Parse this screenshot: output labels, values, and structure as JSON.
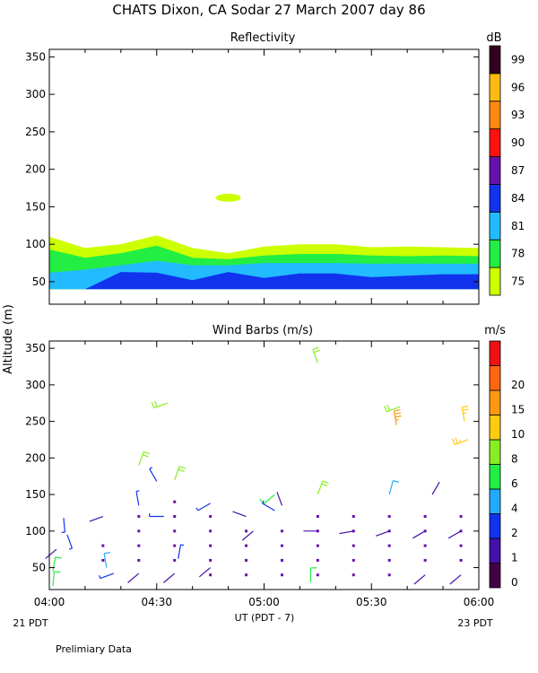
{
  "figure": {
    "title": "CHATS Dixon, CA   Sodar  27 March 2007   day  86",
    "y_axis_label": "Altitude  (m)",
    "x_axis_label": "UT  (PDT - 7)",
    "left_date": "21 PDT",
    "right_date": "23 PDT",
    "footnote": "Prelimiary Data"
  },
  "chart_data": [
    {
      "type": "area",
      "title": "Reflectivity",
      "xlabel": "UT  (PDT - 7)",
      "ylabel": "Altitude  (m)",
      "x_ticks": [
        "04:00",
        "04:30",
        "05:00",
        "05:30",
        "06:00"
      ],
      "x_tick_minutes": [
        0,
        30,
        60,
        90,
        120
      ],
      "xlim_minutes": [
        0,
        120
      ],
      "ylim": [
        20,
        360
      ],
      "y_ticks": [
        50,
        100,
        150,
        200,
        250,
        300,
        350
      ],
      "colorbar": {
        "unit": "dB",
        "levels": [
          75,
          78,
          81,
          84,
          87,
          90,
          93,
          96,
          99
        ],
        "colors": [
          "#ccff00",
          "#22ee44",
          "#22bbff",
          "#1133ee",
          "#6611aa",
          "#ff1111",
          "#ff8811",
          "#ffbb11",
          "#330022"
        ]
      },
      "x_minutes": [
        0,
        10,
        20,
        30,
        40,
        50,
        60,
        70,
        80,
        90,
        100,
        110,
        120
      ],
      "series": [
        {
          "level": 75,
          "top": [
            110,
            95,
            100,
            112,
            95,
            88,
            97,
            100,
            100,
            96,
            97,
            96,
            95
          ]
        },
        {
          "level": 78,
          "top": [
            93,
            82,
            88,
            98,
            82,
            80,
            85,
            87,
            87,
            85,
            84,
            85,
            84
          ]
        },
        {
          "level": 81,
          "top": [
            62,
            66,
            72,
            78,
            72,
            72,
            75,
            75,
            75,
            74,
            74,
            74,
            74
          ]
        },
        {
          "level": 84,
          "top": [
            40,
            40,
            63,
            62,
            52,
            63,
            55,
            61,
            61,
            56,
            58,
            60,
            60
          ]
        }
      ],
      "blob": {
        "level": 75,
        "center_minute": 50,
        "altitude": 162
      }
    },
    {
      "type": "scatter",
      "title": "Wind Barbs (m/s)",
      "xlabel": "UT  (PDT - 7)",
      "ylabel": "Altitude  (m)",
      "x_ticks": [
        "04:00",
        "04:30",
        "05:00",
        "05:30",
        "06:00"
      ],
      "x_tick_minutes": [
        0,
        30,
        60,
        90,
        120
      ],
      "xlim_minutes": [
        0,
        120
      ],
      "ylim": [
        20,
        360
      ],
      "y_ticks": [
        50,
        100,
        150,
        200,
        250,
        300,
        350
      ],
      "colorbar": {
        "unit": "m/s",
        "labels": [
          "0",
          "1",
          "2",
          "4",
          "6",
          "8",
          "10",
          "15",
          "20"
        ],
        "colors": [
          "#440044",
          "#4411aa",
          "#1133ee",
          "#22aaff",
          "#22ee44",
          "#88ee22",
          "#ffcc11",
          "#ff9911",
          "#ff6611",
          "#ee1111"
        ]
      },
      "missing_points": [
        [
          15,
          80
        ],
        [
          25,
          80
        ],
        [
          35,
          80
        ],
        [
          45,
          80
        ],
        [
          55,
          80
        ],
        [
          65,
          80
        ],
        [
          75,
          80
        ],
        [
          85,
          80
        ],
        [
          95,
          80
        ],
        [
          105,
          80
        ],
        [
          115,
          80
        ],
        [
          15,
          60
        ],
        [
          25,
          60
        ],
        [
          35,
          60
        ],
        [
          45,
          60
        ],
        [
          55,
          60
        ],
        [
          65,
          60
        ],
        [
          75,
          60
        ],
        [
          85,
          60
        ],
        [
          95,
          60
        ],
        [
          105,
          60
        ],
        [
          115,
          60
        ],
        [
          25,
          100
        ],
        [
          35,
          100
        ],
        [
          45,
          100
        ],
        [
          55,
          100
        ],
        [
          65,
          100
        ],
        [
          75,
          100
        ],
        [
          85,
          100
        ],
        [
          95,
          100
        ],
        [
          105,
          100
        ],
        [
          115,
          100
        ],
        [
          25,
          120
        ],
        [
          35,
          120
        ],
        [
          45,
          120
        ],
        [
          75,
          120
        ],
        [
          85,
          120
        ],
        [
          95,
          120
        ],
        [
          105,
          120
        ],
        [
          115,
          120
        ],
        [
          35,
          140
        ],
        [
          45,
          40
        ],
        [
          55,
          40
        ],
        [
          65,
          40
        ],
        [
          75,
          40
        ],
        [
          85,
          40
        ],
        [
          95,
          40
        ]
      ],
      "barbs": [
        {
          "x": 1,
          "alt": 25,
          "speed": 6,
          "dir": 5
        },
        {
          "x": 1,
          "alt": 45,
          "speed": 6,
          "dir": 10
        },
        {
          "x": 4,
          "alt": 118,
          "speed": 3,
          "dir": 175
        },
        {
          "x": 5,
          "alt": 95,
          "speed": 3,
          "dir": 160
        },
        {
          "x": 2,
          "alt": 75,
          "speed": 1,
          "dir": 230
        },
        {
          "x": 15,
          "alt": 120,
          "speed": 1,
          "dir": 250
        },
        {
          "x": 16,
          "alt": 50,
          "speed": 5,
          "dir": 350
        },
        {
          "x": 18,
          "alt": 42,
          "speed": 2,
          "dir": 250
        },
        {
          "x": 25,
          "alt": 42,
          "speed": 1,
          "dir": 230
        },
        {
          "x": 25,
          "alt": 135,
          "speed": 3,
          "dir": 350
        },
        {
          "x": 25,
          "alt": 190,
          "speed": 9,
          "dir": 20
        },
        {
          "x": 30,
          "alt": 168,
          "speed": 3,
          "dir": 330
        },
        {
          "x": 32,
          "alt": 120,
          "speed": 3,
          "dir": 270
        },
        {
          "x": 35,
          "alt": 42,
          "speed": 1,
          "dir": 230
        },
        {
          "x": 36,
          "alt": 62,
          "speed": 3,
          "dir": 10
        },
        {
          "x": 33,
          "alt": 275,
          "speed": 9,
          "dir": 250
        },
        {
          "x": 35,
          "alt": 170,
          "speed": 9,
          "dir": 20
        },
        {
          "x": 45,
          "alt": 50,
          "speed": 1,
          "dir": 230
        },
        {
          "x": 45,
          "alt": 138,
          "speed": 3,
          "dir": 240
        },
        {
          "x": 55,
          "alt": 120,
          "speed": 1,
          "dir": 290
        },
        {
          "x": 57,
          "alt": 100,
          "speed": 1,
          "dir": 230
        },
        {
          "x": 63,
          "alt": 150,
          "speed": 6,
          "dir": 230
        },
        {
          "x": 63,
          "alt": 128,
          "speed": 3,
          "dir": 300
        },
        {
          "x": 65,
          "alt": 135,
          "speed": 1,
          "dir": 340
        },
        {
          "x": 73,
          "alt": 30,
          "speed": 6,
          "dir": 0
        },
        {
          "x": 75,
          "alt": 100,
          "speed": 1,
          "dir": 270
        },
        {
          "x": 75,
          "alt": 150,
          "speed": 9,
          "dir": 20
        },
        {
          "x": 75,
          "alt": 330,
          "speed": 9,
          "dir": 340
        },
        {
          "x": 85,
          "alt": 100,
          "speed": 1,
          "dir": 260
        },
        {
          "x": 95,
          "alt": 100,
          "speed": 1,
          "dir": 250
        },
        {
          "x": 95,
          "alt": 150,
          "speed": 5,
          "dir": 15
        },
        {
          "x": 97,
          "alt": 245,
          "speed": 18,
          "dir": 350
        },
        {
          "x": 98,
          "alt": 270,
          "speed": 9,
          "dir": 250
        },
        {
          "x": 105,
          "alt": 100,
          "speed": 1,
          "dir": 240
        },
        {
          "x": 105,
          "alt": 40,
          "speed": 1,
          "dir": 230
        },
        {
          "x": 107,
          "alt": 150,
          "speed": 1,
          "dir": 30
        },
        {
          "x": 115,
          "alt": 40,
          "speed": 1,
          "dir": 230
        },
        {
          "x": 115,
          "alt": 100,
          "speed": 1,
          "dir": 240
        },
        {
          "x": 116,
          "alt": 250,
          "speed": 12,
          "dir": 350
        },
        {
          "x": 117,
          "alt": 225,
          "speed": 12,
          "dir": 250
        }
      ]
    }
  ]
}
